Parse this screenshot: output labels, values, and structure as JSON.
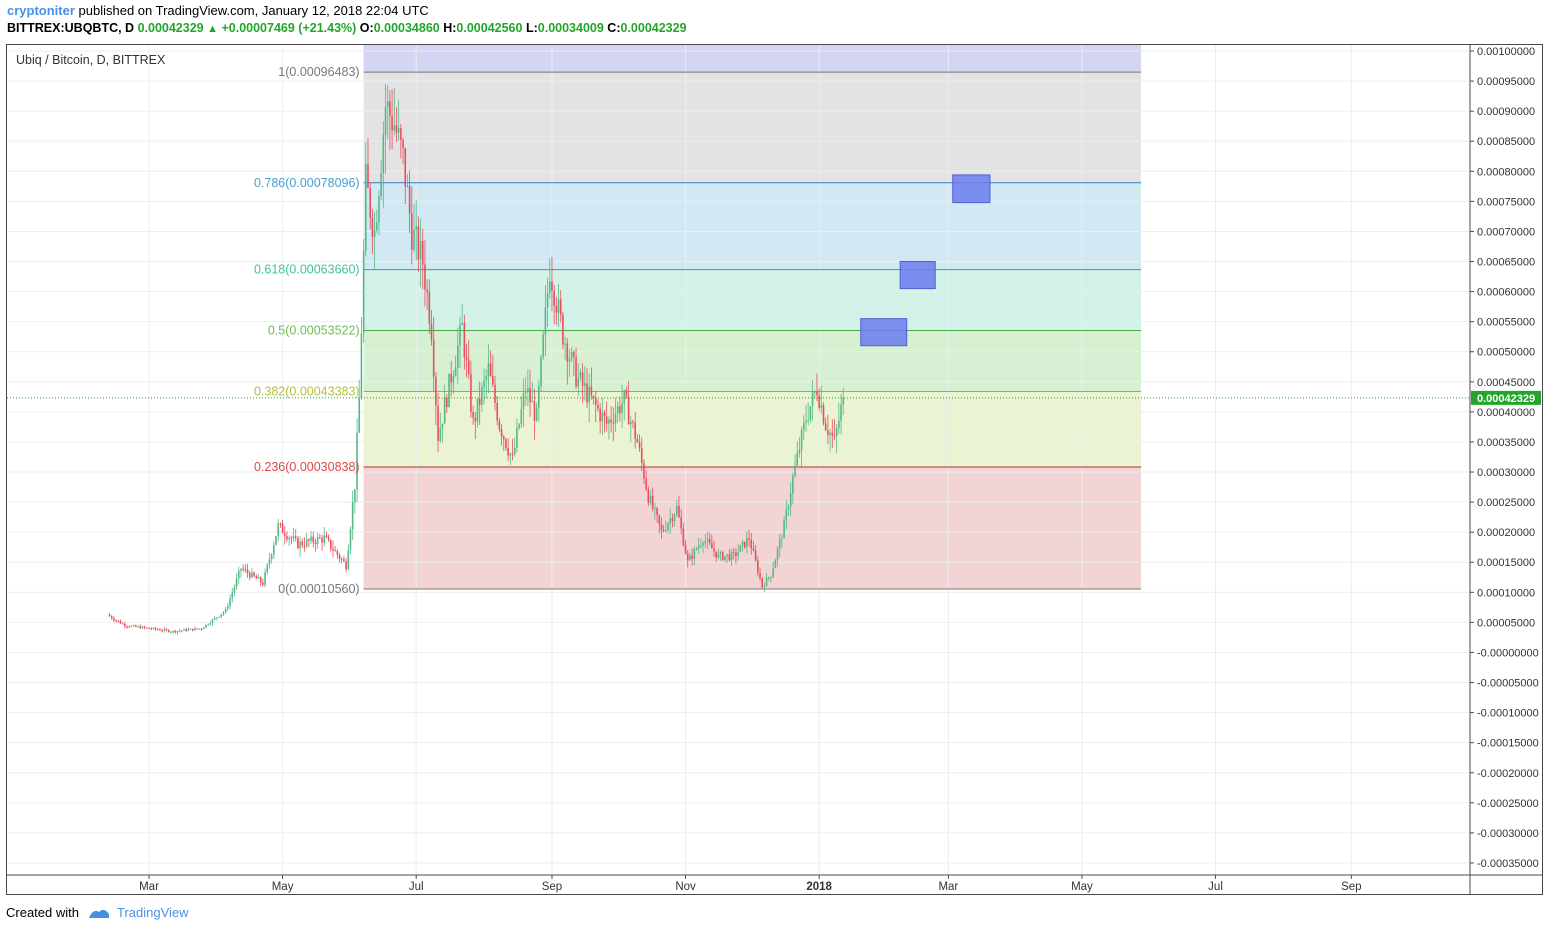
{
  "header": {
    "author": "cryptoniter",
    "published_text": "published on TradingView.com, January 12, 2018 22:04 UTC",
    "symbol_line": "BITTREX:UBQBTC, D",
    "last": "0.00042329",
    "arrow": "▲",
    "change": "+0.00007469 (+21.43%)",
    "o_label": "O:",
    "o_value": "0.00034860",
    "h_label": "H:",
    "h_value": "0.00042560",
    "l_label": "L:",
    "l_value": "0.00034009",
    "c_label": "C:",
    "c_value": "0.00042329"
  },
  "legend": {
    "title": "Ubiq / Bitcoin, D, BITTREX"
  },
  "footer": {
    "created_with": "Created with",
    "brand": "TradingView"
  },
  "colors": {
    "up": "#53b987",
    "down": "#eb4d5c",
    "grid": "#e9eef2",
    "price_line": "#23a52b",
    "target_box": "#6c7cf0"
  },
  "chart_data": {
    "type": "candlestick",
    "title": "Ubiq / Bitcoin, D, BITTREX",
    "symbol": "BITTREX:UBQBTC",
    "timeframe": "D",
    "ylim": [
      -0.00037,
      0.00101
    ],
    "y_ticks": [
      "0.00100000",
      "0.00095000",
      "0.00090000",
      "0.00085000",
      "0.00080000",
      "0.00075000",
      "0.00070000",
      "0.00065000",
      "0.00060000",
      "0.00055000",
      "0.00050000",
      "0.00045000",
      "0.00040000",
      "0.00035000",
      "0.00030000",
      "0.00025000",
      "0.00020000",
      "0.00015000",
      "0.00010000",
      "0.00005000",
      "-0.00000000",
      "-0.00005000",
      "-0.00010000",
      "-0.00015000",
      "-0.00020000",
      "-0.00025000",
      "-0.00030000",
      "-0.00035000"
    ],
    "x_ticks": [
      {
        "label": "Mar",
        "date": "2017-03-01",
        "bold": false
      },
      {
        "label": "May",
        "date": "2017-05-01",
        "bold": false
      },
      {
        "label": "Jul",
        "date": "2017-07-01",
        "bold": false
      },
      {
        "label": "Sep",
        "date": "2017-09-01",
        "bold": false
      },
      {
        "label": "Nov",
        "date": "2017-11-01",
        "bold": false
      },
      {
        "label": "2018",
        "date": "2018-01-01",
        "bold": true
      },
      {
        "label": "Mar",
        "date": "2018-03-01",
        "bold": false
      },
      {
        "label": "May",
        "date": "2018-05-01",
        "bold": false
      },
      {
        "label": "Jul",
        "date": "2018-07-01",
        "bold": false
      },
      {
        "label": "Sep",
        "date": "2018-09-01",
        "bold": false
      }
    ],
    "last_price": {
      "value": 0.00042329,
      "label": "0.00042329"
    },
    "fib_retracement": {
      "start_date": "2017-06-07",
      "end_date": "2018-05-28",
      "levels": [
        {
          "ratio": "1",
          "price": 0.00096483,
          "label": "1(0.00096483)",
          "text_color": "#787878",
          "line_color": "#787878",
          "fill": "#e3e3e3"
        },
        {
          "ratio": "0.786",
          "price": 0.00078096,
          "label": "0.786(0.00078096)",
          "text_color": "#4aa0d0",
          "line_color": "#2f7ec0",
          "fill": "#d2e8f3"
        },
        {
          "ratio": "0.618",
          "price": 0.0006366,
          "label": "0.618(0.00063660)",
          "text_color": "#3ec3a0",
          "line_color": "#30a890",
          "fill": "#d2f2e8"
        },
        {
          "ratio": "0.5",
          "price": 0.00053522,
          "label": "0.5(0.00053522)",
          "text_color": "#6cbf4e",
          "line_color": "#48a84a",
          "fill": "#d7f0d2"
        },
        {
          "ratio": "0.382",
          "price": 0.00043383,
          "label": "0.382(0.00043383)",
          "text_color": "#b5c435",
          "line_color": "#a0b030",
          "fill": "#eaf3d2"
        },
        {
          "ratio": "0.236",
          "price": 0.00030838,
          "label": "0.236(0.00030838)",
          "text_color": "#d84a4a",
          "line_color": "#b03030",
          "fill": "#f3d4d4"
        },
        {
          "ratio": "0",
          "price": 0.0001056,
          "label": "0(0.00010560)",
          "text_color": "#787878",
          "line_color": "#787878"
        }
      ],
      "extension": {
        "top": 0.00101,
        "fill": "#d4d4f3",
        "line_color": "#787878"
      }
    },
    "target_boxes": [
      {
        "start_date": "2018-01-20",
        "end_date": "2018-02-10",
        "low": 0.00051,
        "high": 0.000555
      },
      {
        "start_date": "2018-02-07",
        "end_date": "2018-02-23",
        "low": 0.000605,
        "high": 0.00065
      },
      {
        "start_date": "2018-03-03",
        "end_date": "2018-03-20",
        "low": 0.000748,
        "high": 0.000794
      }
    ],
    "candle_anchors": [
      {
        "date": "2017-02-11",
        "close": 6e-05
      },
      {
        "date": "2017-02-18",
        "close": 4.5e-05
      },
      {
        "date": "2017-03-01",
        "close": 4e-05
      },
      {
        "date": "2017-03-12",
        "close": 3.5e-05
      },
      {
        "date": "2017-03-25",
        "close": 4e-05
      },
      {
        "date": "2017-04-05",
        "close": 7e-05
      },
      {
        "date": "2017-04-12",
        "close": 0.00014
      },
      {
        "date": "2017-04-22",
        "close": 0.000115
      },
      {
        "date": "2017-04-29",
        "close": 0.00021
      },
      {
        "date": "2017-05-08",
        "close": 0.00018
      },
      {
        "date": "2017-05-20",
        "close": 0.00019
      },
      {
        "date": "2017-05-30",
        "close": 0.000145
      },
      {
        "date": "2017-06-03",
        "close": 0.00028
      },
      {
        "date": "2017-06-05",
        "close": 0.00042
      },
      {
        "date": "2017-06-08",
        "close": 0.00078
      },
      {
        "date": "2017-06-12",
        "close": 0.0007
      },
      {
        "date": "2017-06-17",
        "close": 0.00091
      },
      {
        "date": "2017-06-21",
        "close": 0.00088
      },
      {
        "date": "2017-06-25",
        "close": 0.00082
      },
      {
        "date": "2017-06-29",
        "close": 0.0007
      },
      {
        "date": "2017-07-04",
        "close": 0.00065
      },
      {
        "date": "2017-07-08",
        "close": 0.00054
      },
      {
        "date": "2017-07-11",
        "close": 0.00036
      },
      {
        "date": "2017-07-17",
        "close": 0.00046
      },
      {
        "date": "2017-07-22",
        "close": 0.00054
      },
      {
        "date": "2017-07-27",
        "close": 0.00038
      },
      {
        "date": "2017-08-03",
        "close": 0.00047
      },
      {
        "date": "2017-08-08",
        "close": 0.00038
      },
      {
        "date": "2017-08-14",
        "close": 0.00032
      },
      {
        "date": "2017-08-20",
        "close": 0.00044
      },
      {
        "date": "2017-08-25",
        "close": 0.00039
      },
      {
        "date": "2017-08-31",
        "close": 0.00064
      },
      {
        "date": "2017-09-06",
        "close": 0.00053
      },
      {
        "date": "2017-09-12",
        "close": 0.00046
      },
      {
        "date": "2017-09-19",
        "close": 0.00042
      },
      {
        "date": "2017-09-26",
        "close": 0.00038
      },
      {
        "date": "2017-10-04",
        "close": 0.00042
      },
      {
        "date": "2017-10-10",
        "close": 0.00035
      },
      {
        "date": "2017-10-15",
        "close": 0.00026
      },
      {
        "date": "2017-10-21",
        "close": 0.0002
      },
      {
        "date": "2017-10-28",
        "close": 0.00024
      },
      {
        "date": "2017-11-02",
        "close": 0.00015
      },
      {
        "date": "2017-11-09",
        "close": 0.00019
      },
      {
        "date": "2017-11-16",
        "close": 0.00016
      },
      {
        "date": "2017-11-23",
        "close": 0.00016
      },
      {
        "date": "2017-11-30",
        "close": 0.00019
      },
      {
        "date": "2017-12-06",
        "close": 0.00011
      },
      {
        "date": "2017-12-10",
        "close": 0.00013
      },
      {
        "date": "2017-12-16",
        "close": 0.00021
      },
      {
        "date": "2017-12-20",
        "close": 0.00029
      },
      {
        "date": "2017-12-26",
        "close": 0.00039
      },
      {
        "date": "2017-12-31",
        "close": 0.00044
      },
      {
        "date": "2018-01-04",
        "close": 0.00038
      },
      {
        "date": "2018-01-08",
        "close": 0.00035
      },
      {
        "date": "2018-01-12",
        "close": 0.000423
      }
    ]
  }
}
